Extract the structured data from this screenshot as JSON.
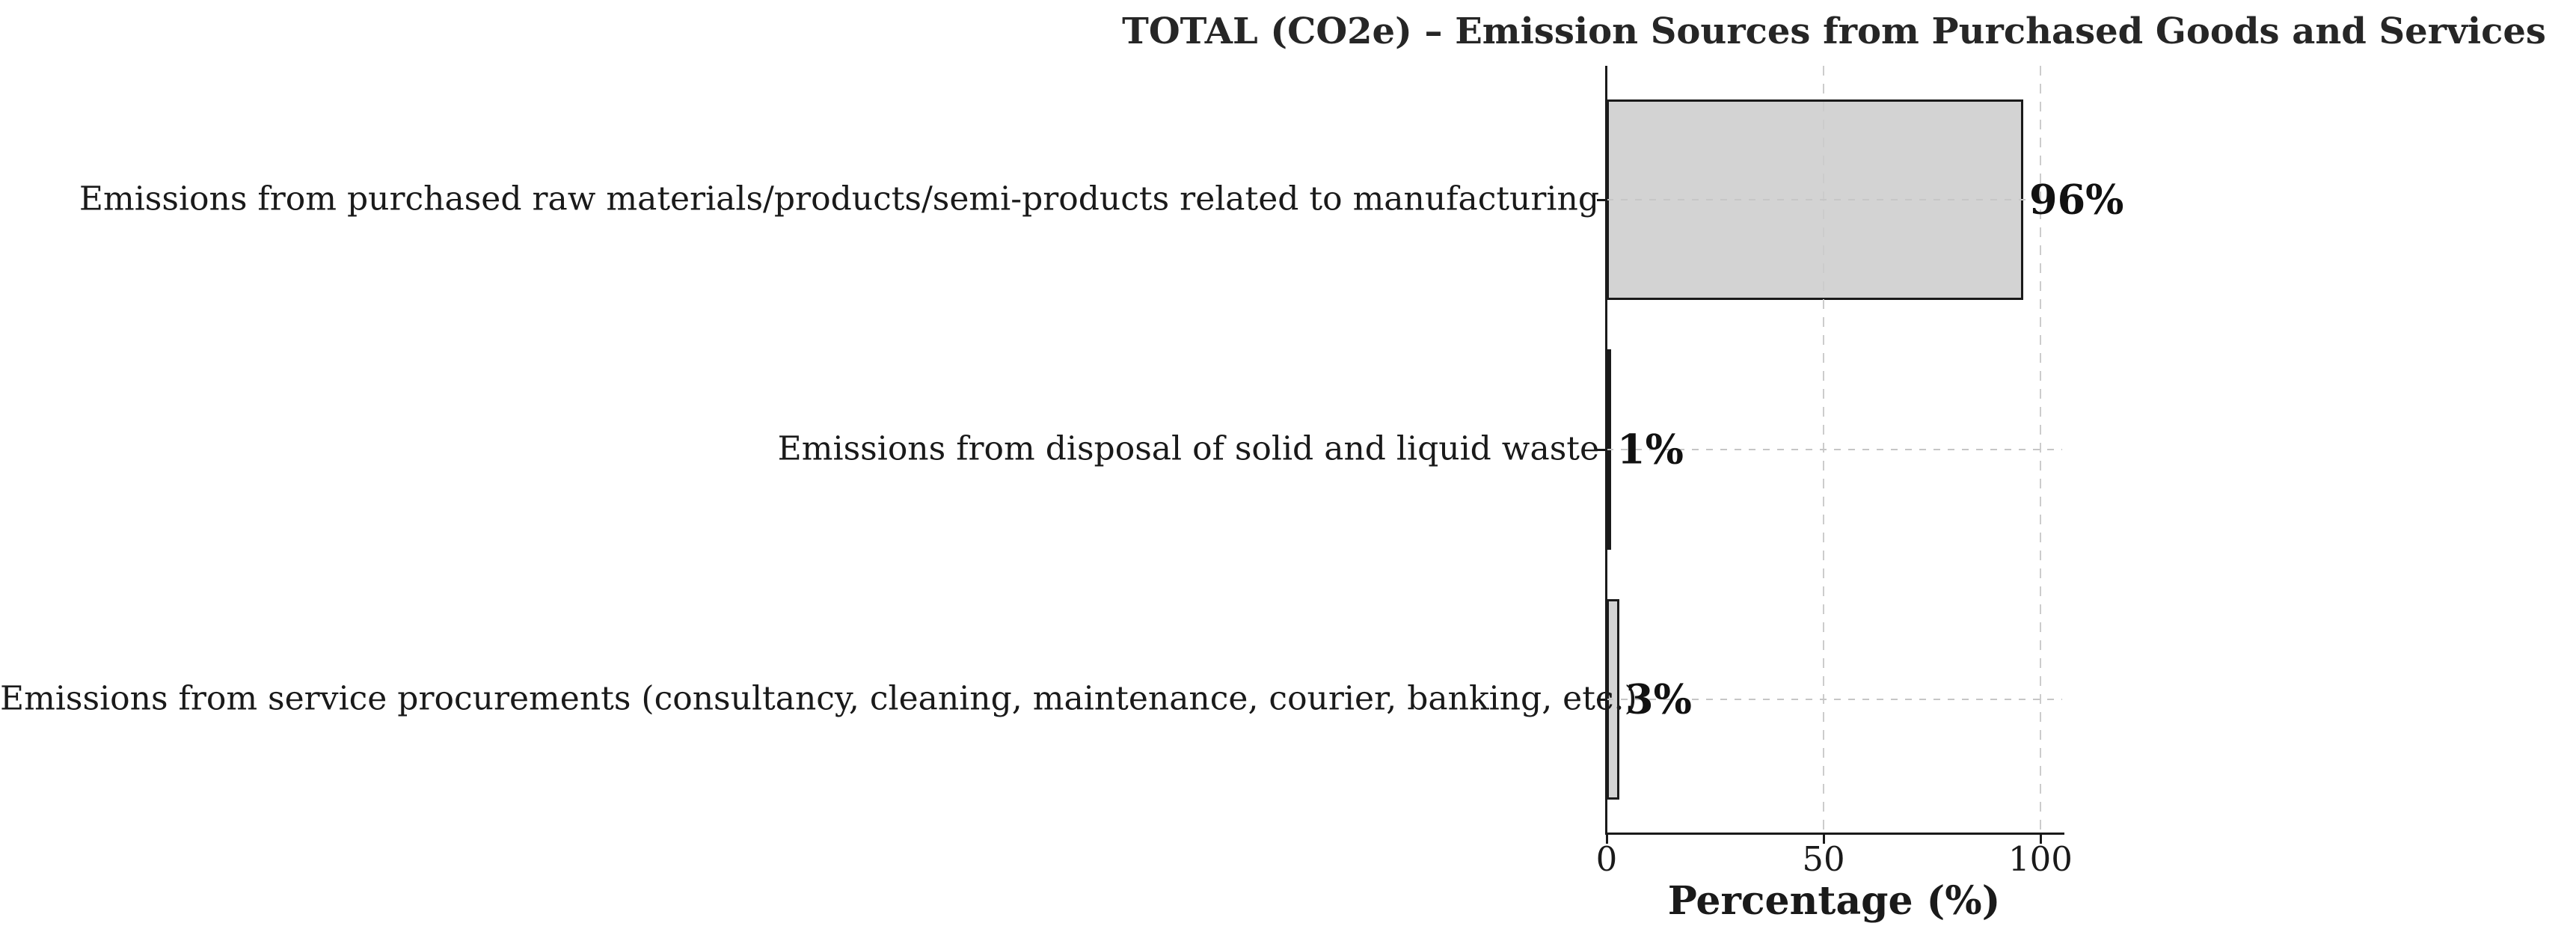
{
  "chart_data": {
    "type": "bar",
    "orientation": "horizontal",
    "title": "TOTAL (CO2e) – Emission Sources from Purchased Goods and Services",
    "categories": [
      "Emissions from purchased raw materials/products/semi-products related to manufacturing",
      "Emissions from disposal of solid and liquid waste",
      "Emissions from service procurements (consultancy, cleaning, maintenance, courier, banking, etc.)"
    ],
    "values": [
      96,
      1,
      3
    ],
    "value_labels": [
      "96%",
      "1%",
      "3%"
    ],
    "xlabel": "Percentage (%)",
    "xtick_labels": [
      "0",
      "50",
      "100"
    ],
    "xtick_values": [
      0,
      50,
      100
    ],
    "xlim": [
      0,
      105
    ],
    "ylabel": "",
    "legend": "none",
    "grid": {
      "vertical": "dashed",
      "horizontal": "dotted",
      "grid_above_bars": true
    },
    "colors": {
      "bar_fill": "#d3d3d3",
      "bar_edge": "#1a1a1a",
      "grid": "#cccccc",
      "text": "#1a1a1a",
      "background": "#ffffff"
    }
  }
}
